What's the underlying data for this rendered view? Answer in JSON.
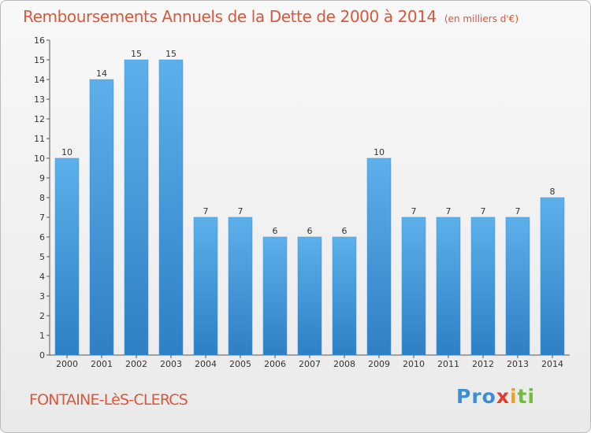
{
  "chart_data": {
    "type": "bar",
    "title": "Remboursements Annuels de la Dette de 2000 à 2014",
    "unit_note": "(en milliers d'€)",
    "categories": [
      "2000",
      "2001",
      "2002",
      "2003",
      "2004",
      "2005",
      "2006",
      "2007",
      "2008",
      "2009",
      "2010",
      "2011",
      "2012",
      "2013",
      "2014"
    ],
    "values": [
      10,
      14,
      15,
      15,
      7,
      7,
      6,
      6,
      6,
      10,
      7,
      7,
      7,
      7,
      8
    ],
    "yticks": [
      "0",
      "1",
      "2",
      "3",
      "4",
      "5",
      "6",
      "7",
      "8",
      "9",
      "10",
      "11",
      "12",
      "13",
      "14",
      "15",
      "16"
    ],
    "ylim": [
      0,
      16
    ],
    "grid": false,
    "bar_color": "#3f93d8",
    "bar_color_light": "#5db0ea",
    "bar_color_dark": "#2f7fc4",
    "title_color": "#d8583c"
  },
  "commune": "FONTAINE-LèS-CLERCS",
  "logo": {
    "p1": "Pro",
    "p2": "x",
    "p3": "i",
    "p4": "ti"
  }
}
